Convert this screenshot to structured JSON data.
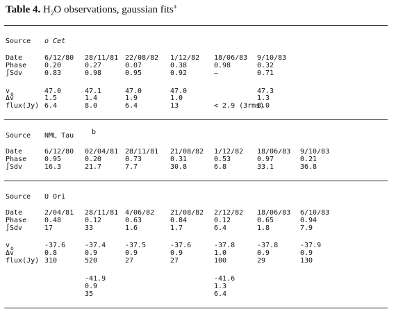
{
  "title": {
    "label": "Table 4.",
    "h": "H",
    "sub": "2",
    "rest": "O observations, gaussian fits",
    "note": "a"
  },
  "sections": [
    {
      "source_label": "Source",
      "source": "o Cet",
      "rows": [
        {
          "label": "Date",
          "cells": [
            "6/12/80",
            "28/11/81",
            "22/08/82",
            "1/12/82",
            "18/06/83",
            "9/10/83"
          ]
        },
        {
          "label": "Phase",
          "cells": [
            "0.20",
            "0.27",
            "0.07",
            "0.38",
            "0.98",
            "0.32"
          ]
        },
        {
          "label": "∫Sdv",
          "cells": [
            "0.83",
            "0.98",
            "0.95",
            "0.92",
            "–",
            "0.71"
          ]
        },
        {
          "label": "v",
          "sub": "o",
          "cells": [
            "47.0",
            "47.1",
            "47.0",
            "47.0",
            null,
            "47.3"
          ]
        },
        {
          "label": "Δv",
          "cells": [
            "1.5",
            "1.4",
            "1.9",
            "1.0",
            null,
            "1.3"
          ]
        },
        {
          "label": "flux(Jy)",
          "cells": [
            "6.4",
            "8.0",
            "6.4",
            "13",
            "< 2.9 (3rms)",
            "8.0"
          ]
        }
      ]
    },
    {
      "source_label": "Source",
      "source": "NML Tau",
      "note": "b",
      "rows": [
        {
          "label": "Date",
          "cells": [
            "6/12/80",
            "02/04/81",
            "28/11/81",
            "21/08/82",
            "1/12/82",
            "18/06/83",
            "9/10/83"
          ]
        },
        {
          "label": "Phase",
          "cells": [
            "0.95",
            "0.20",
            "0.73",
            "0.31",
            "0.53",
            "0.97",
            "0.21"
          ]
        },
        {
          "label": "∫Sdv",
          "cells": [
            "16.3",
            "21.7",
            "7.7",
            "30.8",
            "6.8",
            "33.1",
            "36.8"
          ]
        }
      ]
    },
    {
      "source_label": "Source",
      "source": "U Ori",
      "rows": [
        {
          "label": "Date",
          "cells": [
            "2/04/81",
            "28/11/81",
            "4/06/82",
            "21/08/82",
            "2/12/82",
            "18/06/83",
            "6/10/83"
          ]
        },
        {
          "label": "Phase",
          "cells": [
            "0.48",
            "0.12",
            "0.63",
            "0.84",
            "0.12",
            "0.65",
            "0.94"
          ]
        },
        {
          "label": "∫Sdv",
          "cells": [
            "17",
            "33",
            "1.6",
            "1.7",
            "6.4",
            "1.8",
            "7.9"
          ]
        },
        {
          "label": "v",
          "sub": "o",
          "cells": [
            "-37.6",
            "-37.4",
            "-37.5",
            "-37.6",
            "-37.8",
            "-37.8",
            "-37.9"
          ]
        },
        {
          "label": "Δv",
          "cells": [
            "0.8",
            "0.9",
            "0.9",
            "0.9",
            "1.0",
            "0.9",
            "0.9"
          ]
        },
        {
          "label": "flux(Jy)",
          "cells": [
            "310",
            "520",
            "27",
            "27",
            "100",
            "29",
            "130"
          ]
        },
        {
          "label": null,
          "cells": [
            null,
            "-41.9",
            null,
            null,
            "-41.6",
            null,
            null
          ]
        },
        {
          "label": null,
          "cells": [
            null,
            "0.9",
            null,
            null,
            "1.3",
            null,
            null
          ]
        },
        {
          "label": null,
          "cells": [
            null,
            "35",
            null,
            null,
            "6.4",
            null,
            null
          ]
        }
      ]
    }
  ]
}
